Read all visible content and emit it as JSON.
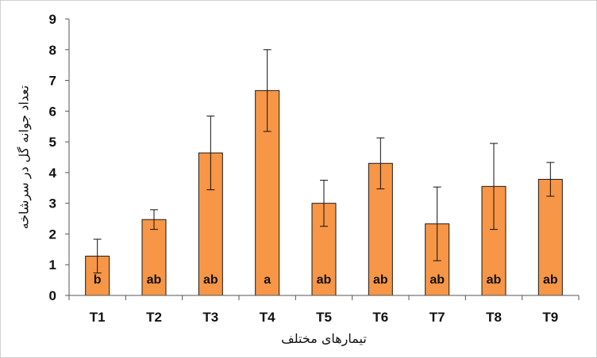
{
  "chart_data": {
    "type": "bar",
    "categories": [
      "T1",
      "T2",
      "T3",
      "T4",
      "T5",
      "T6",
      "T7",
      "T8",
      "T9"
    ],
    "values": [
      1.28,
      2.47,
      4.64,
      6.67,
      3.0,
      4.3,
      2.33,
      3.55,
      3.78
    ],
    "error": [
      0.55,
      0.32,
      1.2,
      1.33,
      0.75,
      0.83,
      1.2,
      1.4,
      0.55
    ],
    "significance": [
      "b",
      "ab",
      "ab",
      "a",
      "ab",
      "ab",
      "ab",
      "ab",
      "ab"
    ],
    "title": "",
    "xlabel": "تیمارهای مختلف",
    "ylabel": "تعداد جوانه گل در سرشاخه",
    "ylim": [
      0,
      9
    ],
    "yticks": [
      "0",
      "1",
      "2",
      "3",
      "4",
      "5",
      "6",
      "7",
      "8",
      "9"
    ],
    "grid": false,
    "legend": "none",
    "bar_color": "#F79646",
    "bar_edge_color": "#1a1a1a"
  }
}
